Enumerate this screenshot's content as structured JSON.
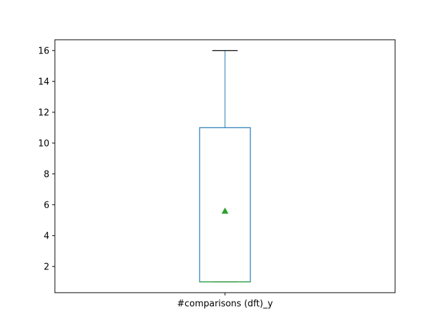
{
  "chart_data": {
    "type": "box",
    "categories": [
      "#comparisons (dft)_y"
    ],
    "boxes": [
      {
        "label": "#comparisons (dft)_y",
        "whisker_low": 1,
        "q1": 1,
        "median": 1,
        "q3": 11,
        "whisker_high": 16,
        "mean": 5.6
      }
    ],
    "ylim": [
      0.3,
      16.7
    ],
    "yticks": [
      2,
      4,
      6,
      8,
      10,
      12,
      14,
      16
    ],
    "grid": false,
    "colors": {
      "box": "#1f77b4",
      "median": "#2ca02c",
      "mean_marker": "#2ca02c",
      "whisker_cap": "#000000"
    }
  }
}
